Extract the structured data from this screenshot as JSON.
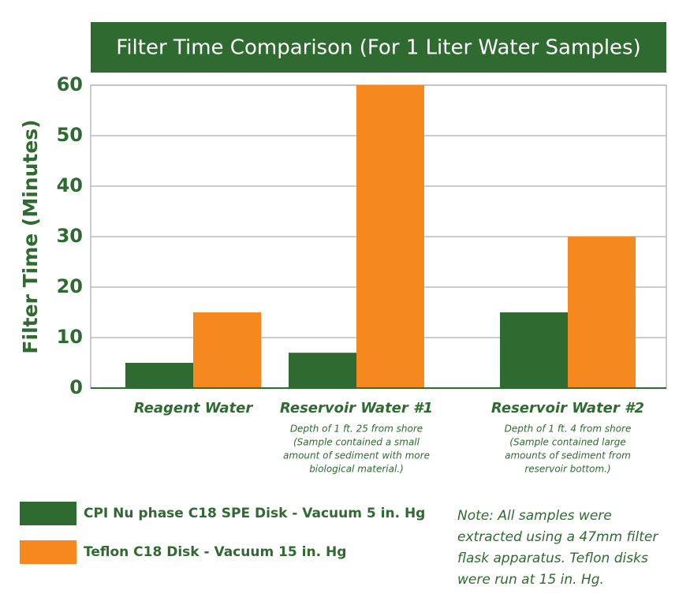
{
  "chart_data": {
    "type": "bar",
    "title": "Filter Time Comparison (For 1 Liter Water Samples)",
    "y_label": "Filter Time (Minutes)",
    "categories": [
      "Reagent Water",
      "Reservoir Water #1",
      "Reservoir Water #2"
    ],
    "category_notes": [
      [],
      [
        "Depth of 1 ft. 25 from shore",
        "(Sample contained a small",
        "amount of sediment with more",
        "biological material.)"
      ],
      [
        "Depth of 1 ft. 4  from shore",
        "(Sample contained large",
        "amounts of sediment from",
        "reservoir bottom.)"
      ]
    ],
    "series": [
      {
        "name": "CPI Nu phase C18 SPE Disk - Vacuum 5 in. Hg",
        "color": "#2f6a31",
        "values": [
          5,
          7,
          15
        ]
      },
      {
        "name": "Teflon C18 Disk - Vacuum 15 in. Hg",
        "color": "#f5881f",
        "values": [
          15,
          60,
          30
        ]
      }
    ],
    "ylim": [
      0,
      60
    ],
    "yticks": [
      0,
      10,
      20,
      30,
      40,
      50,
      60
    ],
    "grid": true,
    "note": [
      "Note: All samples were",
      "extracted using a 47mm filter",
      "flask apparatus. Teflon disks",
      "were run at 15 in. Hg."
    ]
  }
}
